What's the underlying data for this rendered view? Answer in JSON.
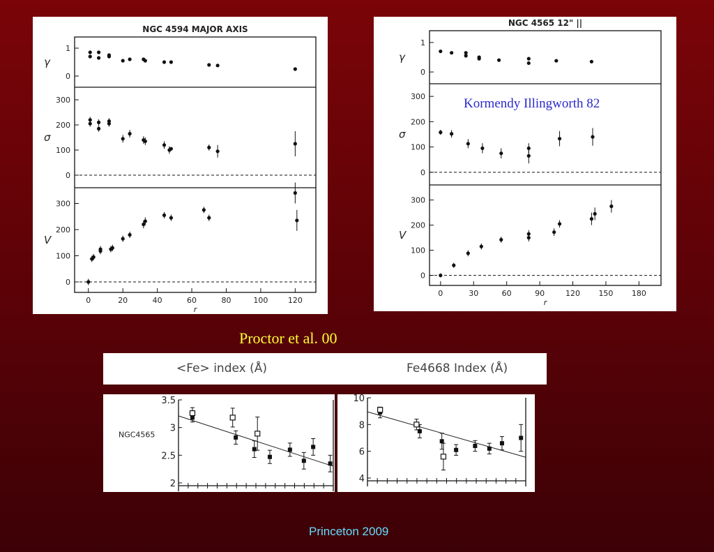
{
  "colors": {
    "background": "#6b0309",
    "caption": "#ffff33",
    "footer": "#66ddff",
    "annotation": "#2a2acc"
  },
  "captions": {
    "proctor": "Proctor et al. 00",
    "footer": "Princeton 2009",
    "kormendy": "Kormendy Illingworth 82"
  },
  "chart_data": [
    {
      "type": "scatter",
      "title": "NGC 4594 MAJOR AXIS",
      "xlabel": "r",
      "xticks": [
        "0",
        "20",
        "40",
        "60",
        "80",
        "100",
        "120"
      ],
      "xlim": [
        -8,
        132
      ],
      "panels": [
        {
          "ylabel": "γ",
          "ylim": [
            -0.4,
            1.4
          ],
          "yticks": [
            "0",
            "1"
          ],
          "dashed_zero": false,
          "points": [
            [
              1,
              0.85
            ],
            [
              1,
              0.7
            ],
            [
              6,
              0.85
            ],
            [
              6,
              0.65
            ],
            [
              12,
              0.75
            ],
            [
              12,
              0.7
            ],
            [
              20,
              0.55
            ],
            [
              24,
              0.6
            ],
            [
              32,
              0.6
            ],
            [
              33,
              0.55
            ],
            [
              44,
              0.5
            ],
            [
              48,
              0.5
            ],
            [
              70,
              0.4
            ],
            [
              75,
              0.38
            ],
            [
              120,
              0.25
            ]
          ]
        },
        {
          "ylabel": "σ",
          "ylim": [
            -50,
            350
          ],
          "yticks": [
            "0",
            "100",
            "200",
            "300"
          ],
          "dashed_zero": true,
          "points": [
            [
              1,
              205,
              12
            ],
            [
              1,
              220,
              12
            ],
            [
              6,
              185,
              12
            ],
            [
              6,
              210,
              12
            ],
            [
              12,
              205,
              12
            ],
            [
              12,
              215,
              12
            ],
            [
              20,
              145,
              15
            ],
            [
              24,
              165,
              15
            ],
            [
              32,
              140,
              15
            ],
            [
              33,
              135,
              15
            ],
            [
              44,
              120,
              15
            ],
            [
              47,
              100,
              15
            ],
            [
              48,
              105,
              0
            ],
            [
              70,
              110,
              12
            ],
            [
              75,
              95,
              25
            ],
            [
              120,
              125,
              50
            ]
          ]
        },
        {
          "ylabel": "V",
          "ylim": [
            -40,
            360
          ],
          "yticks": [
            "0",
            "100",
            "200",
            "300"
          ],
          "dashed_zero": true,
          "points": [
            [
              0,
              0,
              12
            ],
            [
              2,
              88,
              12
            ],
            [
              3,
              95,
              12
            ],
            [
              7,
              118,
              12
            ],
            [
              7,
              125,
              12
            ],
            [
              13,
              125,
              12
            ],
            [
              14,
              130,
              12
            ],
            [
              20,
              165,
              12
            ],
            [
              24,
              180,
              12
            ],
            [
              32,
              220,
              15
            ],
            [
              33,
              232,
              15
            ],
            [
              44,
              255,
              12
            ],
            [
              48,
              245,
              12
            ],
            [
              67,
              275,
              12
            ],
            [
              70,
              245,
              12
            ],
            [
              120,
              340,
              40
            ],
            [
              121,
              235,
              40
            ]
          ]
        }
      ]
    },
    {
      "type": "scatter",
      "title": "NGC 4565 12\" ||",
      "xlabel": "r",
      "xticks": [
        "0",
        "30",
        "60",
        "90",
        "120",
        "150",
        "180"
      ],
      "xlim": [
        -10,
        200
      ],
      "panels": [
        {
          "ylabel": "γ",
          "ylim": [
            -0.4,
            1.4
          ],
          "yticks": [
            "0",
            "1"
          ],
          "dashed_zero": false,
          "points": [
            [
              0,
              0.7
            ],
            [
              10,
              0.65
            ],
            [
              23,
              0.65
            ],
            [
              23,
              0.55
            ],
            [
              35,
              0.5
            ],
            [
              35,
              0.45
            ],
            [
              53,
              0.4
            ],
            [
              80,
              0.45
            ],
            [
              80,
              0.3
            ],
            [
              105,
              0.38
            ],
            [
              137,
              0.35
            ]
          ]
        },
        {
          "ylabel": "σ",
          "ylim": [
            -50,
            350
          ],
          "yticks": [
            "0",
            "100",
            "200",
            "300"
          ],
          "dashed_zero": true,
          "points": [
            [
              0,
              158,
              10
            ],
            [
              10,
              152,
              15
            ],
            [
              25,
              113,
              18
            ],
            [
              38,
              95,
              20
            ],
            [
              55,
              75,
              20
            ],
            [
              80,
              95,
              20
            ],
            [
              80,
              65,
              30
            ],
            [
              108,
              133,
              30
            ],
            [
              138,
              140,
              35
            ]
          ]
        },
        {
          "ylabel": "V",
          "ylim": [
            -40,
            360
          ],
          "yticks": [
            "0",
            "100",
            "200",
            "300"
          ],
          "dashed_zero": true,
          "points": [
            [
              0,
              0,
              8
            ],
            [
              12,
              40,
              10
            ],
            [
              25,
              88,
              12
            ],
            [
              37,
              115,
              12
            ],
            [
              55,
              142,
              12
            ],
            [
              80,
              150,
              15
            ],
            [
              80,
              165,
              15
            ],
            [
              103,
              172,
              15
            ],
            [
              108,
              205,
              15
            ],
            [
              137,
              225,
              25
            ],
            [
              140,
              245,
              25
            ],
            [
              155,
              275,
              25
            ]
          ]
        }
      ]
    },
    {
      "type": "scatter",
      "title": "<Fe> index (Å)",
      "ylabel": "NGC4565",
      "ylim": [
        2,
        3.5
      ],
      "yticks": [
        "2",
        "2.5",
        "3",
        "3.5"
      ],
      "line": [
        [
          0,
          3.21
        ],
        [
          1,
          2.3
        ]
      ],
      "filled": [
        [
          0.09,
          3.18,
          0.08
        ],
        [
          0.37,
          2.82,
          0.12
        ],
        [
          0.49,
          2.61,
          0.15
        ],
        [
          0.59,
          2.47,
          0.12
        ],
        [
          0.72,
          2.6,
          0.12
        ],
        [
          0.81,
          2.4,
          0.15
        ],
        [
          0.87,
          2.65,
          0.15
        ],
        [
          0.98,
          2.35,
          0.15
        ]
      ],
      "open": [
        [
          0.09,
          3.26,
          0.1
        ],
        [
          0.35,
          3.18,
          0.17
        ],
        [
          0.51,
          2.89,
          0.3
        ]
      ]
    },
    {
      "type": "scatter",
      "title": "Fe4668 Index (Å)",
      "ylim": [
        4,
        10
      ],
      "yticks": [
        "4",
        "6",
        "8",
        "10"
      ],
      "line": [
        [
          0,
          8.95
        ],
        [
          1,
          5.55
        ]
      ],
      "filled": [
        [
          0.08,
          8.9,
          0.4
        ],
        [
          0.33,
          7.5,
          0.5
        ],
        [
          0.47,
          6.75,
          0.6
        ],
        [
          0.56,
          6.1,
          0.4
        ],
        [
          0.68,
          6.4,
          0.4
        ],
        [
          0.77,
          6.2,
          0.4
        ],
        [
          0.85,
          6.6,
          0.5
        ],
        [
          0.97,
          7.0,
          1.0
        ]
      ],
      "open": [
        [
          0.08,
          9.1,
          0.2
        ],
        [
          0.31,
          8.0,
          0.4
        ],
        [
          0.48,
          5.6,
          1.0
        ]
      ]
    }
  ]
}
